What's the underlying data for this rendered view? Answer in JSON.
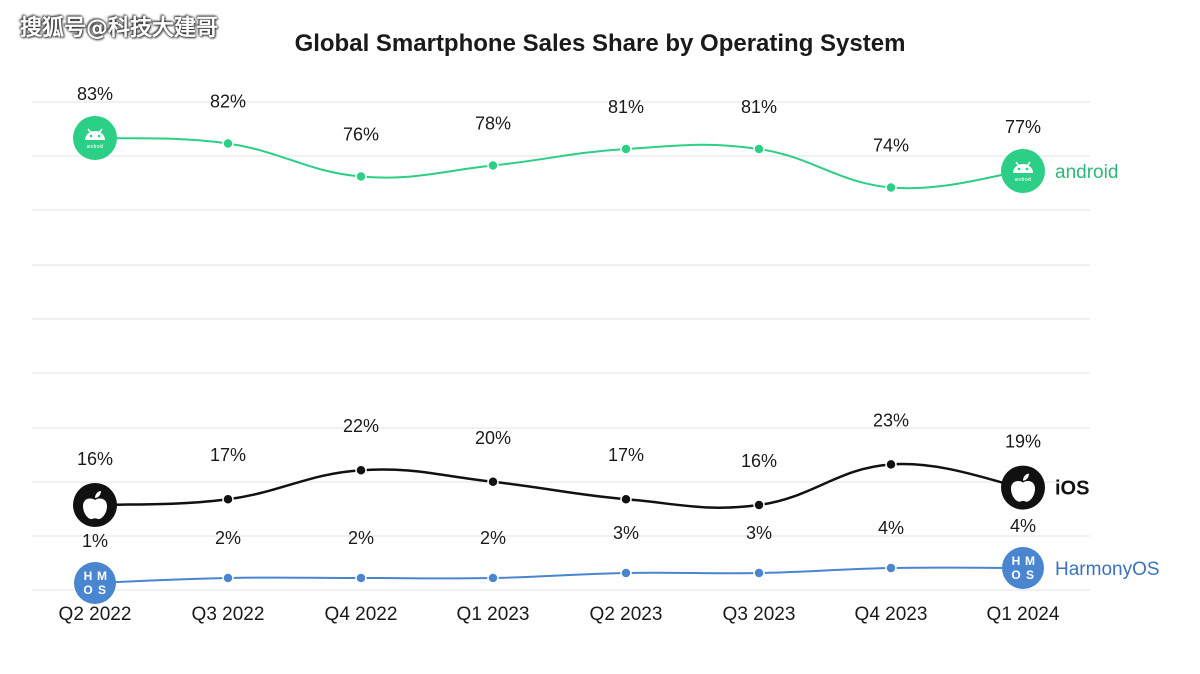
{
  "watermark": "搜狐号@科技大建哥",
  "chart_data": {
    "type": "line",
    "title": "Global Smartphone Sales Share by Operating System",
    "xlabel": "",
    "ylabel": "",
    "categories": [
      "Q2 2022",
      "Q3 2022",
      "Q4 2022",
      "Q1 2023",
      "Q2 2023",
      "Q3 2023",
      "Q4 2023",
      "Q1 2024"
    ],
    "series": [
      {
        "name": "android",
        "color": "#2bcf86",
        "icon": "android-logo-icon",
        "icon_text": "android",
        "values": [
          83,
          82,
          76,
          78,
          81,
          81,
          74,
          77
        ],
        "labels": [
          "83%",
          "82%",
          "76%",
          "78%",
          "81%",
          "81%",
          "74%",
          "77%"
        ]
      },
      {
        "name": "iOS",
        "color": "#111111",
        "icon": "apple-logo-icon",
        "values": [
          16,
          17,
          22,
          20,
          17,
          16,
          23,
          19
        ],
        "labels": [
          "16%",
          "17%",
          "22%",
          "20%",
          "17%",
          "16%",
          "23%",
          "19%"
        ]
      },
      {
        "name": "HarmonyOS",
        "color": "#4a86d0",
        "icon": "hmos-logo-icon",
        "icon_text": [
          "H",
          "M",
          "O",
          "S"
        ],
        "values": [
          1,
          2,
          2,
          2,
          3,
          3,
          4,
          4
        ],
        "labels": [
          "1%",
          "2%",
          "2%",
          "2%",
          "3%",
          "3%",
          "4%",
          "4%"
        ]
      }
    ],
    "grid": true,
    "legend": "right, at end of each line"
  }
}
